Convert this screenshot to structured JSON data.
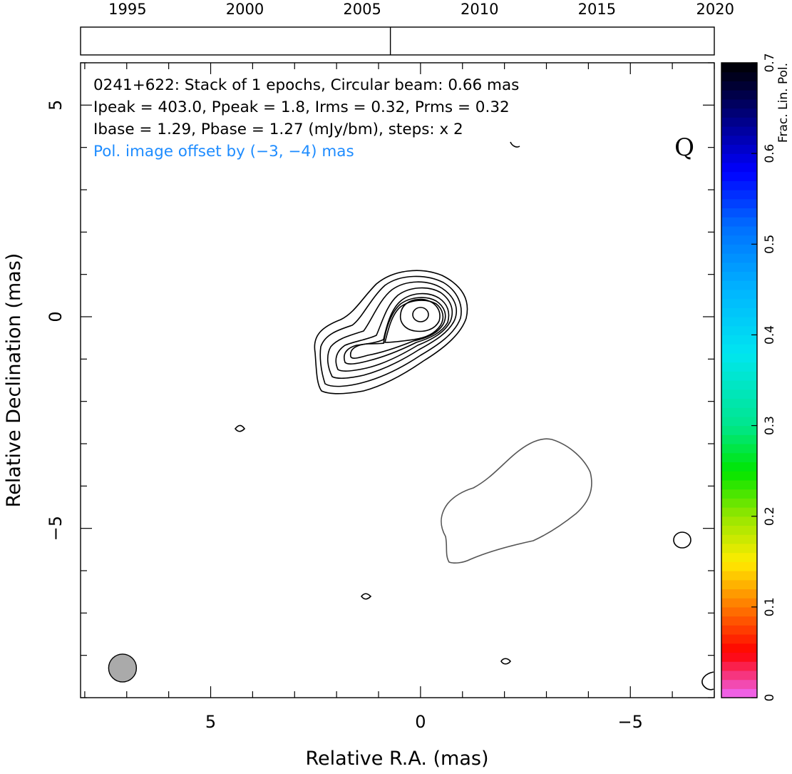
{
  "chart_data": {
    "type": "contour",
    "source": "0241+622",
    "info_lines": [
      "0241+622: Stack of 1 epochs, Circular beam: 0.66 mas",
      "Ipeak = 403.0, Ppeak = 1.8, Irms = 0.32, Prms = 0.32",
      "Ibase = 1.29, Pbase = 1.27 (mJy/bm), steps: x 2"
    ],
    "offset_note": "Pol. image offset by (−3, −4) mas",
    "stokes_label": "Q",
    "xlabel": "Relative R.A. (mas)",
    "ylabel": "Relative Declination (mas)",
    "xlim": [
      8.1,
      -7
    ],
    "ylim": [
      -9,
      6
    ],
    "x_ticks": [
      {
        "value": 5,
        "label": "5"
      },
      {
        "value": 0,
        "label": "0"
      },
      {
        "value": -5,
        "label": "−5"
      }
    ],
    "y_ticks": [
      {
        "value": 5,
        "label": "5"
      },
      {
        "value": 0,
        "label": "0"
      },
      {
        "value": -5,
        "label": "−5"
      }
    ],
    "contour_levels_mJy_per_beam": [
      1.29,
      2.58,
      5.16,
      10.32,
      20.64,
      41.28,
      82.56,
      165.12,
      330.24
    ],
    "main_component": {
      "ra": 0,
      "dec": 0
    },
    "polarization_contour_center": {
      "ra": -3,
      "dec": -5
    },
    "beam": {
      "ra": 7.1,
      "dec": -8.3,
      "diameter_mas": 0.66
    },
    "colorbar": {
      "label": "Frac. Lin. Pol.",
      "range": [
        0,
        0.7
      ],
      "ticks": [
        "0",
        "0.1",
        "0.2",
        "0.3",
        "0.4",
        "0.5",
        "0.6",
        "0.7"
      ]
    },
    "timeline": {
      "range": [
        1993,
        2020
      ],
      "years": [
        "1995",
        "2000",
        "2005",
        "2010",
        "2015",
        "2020"
      ],
      "epoch_marker": 2006.2
    },
    "colors": {
      "stokes_i_contour": "#000000",
      "pol_contour": "#555555",
      "beam_fill": "#aaaaaa",
      "offset_note_text": "#1e8cff"
    }
  }
}
